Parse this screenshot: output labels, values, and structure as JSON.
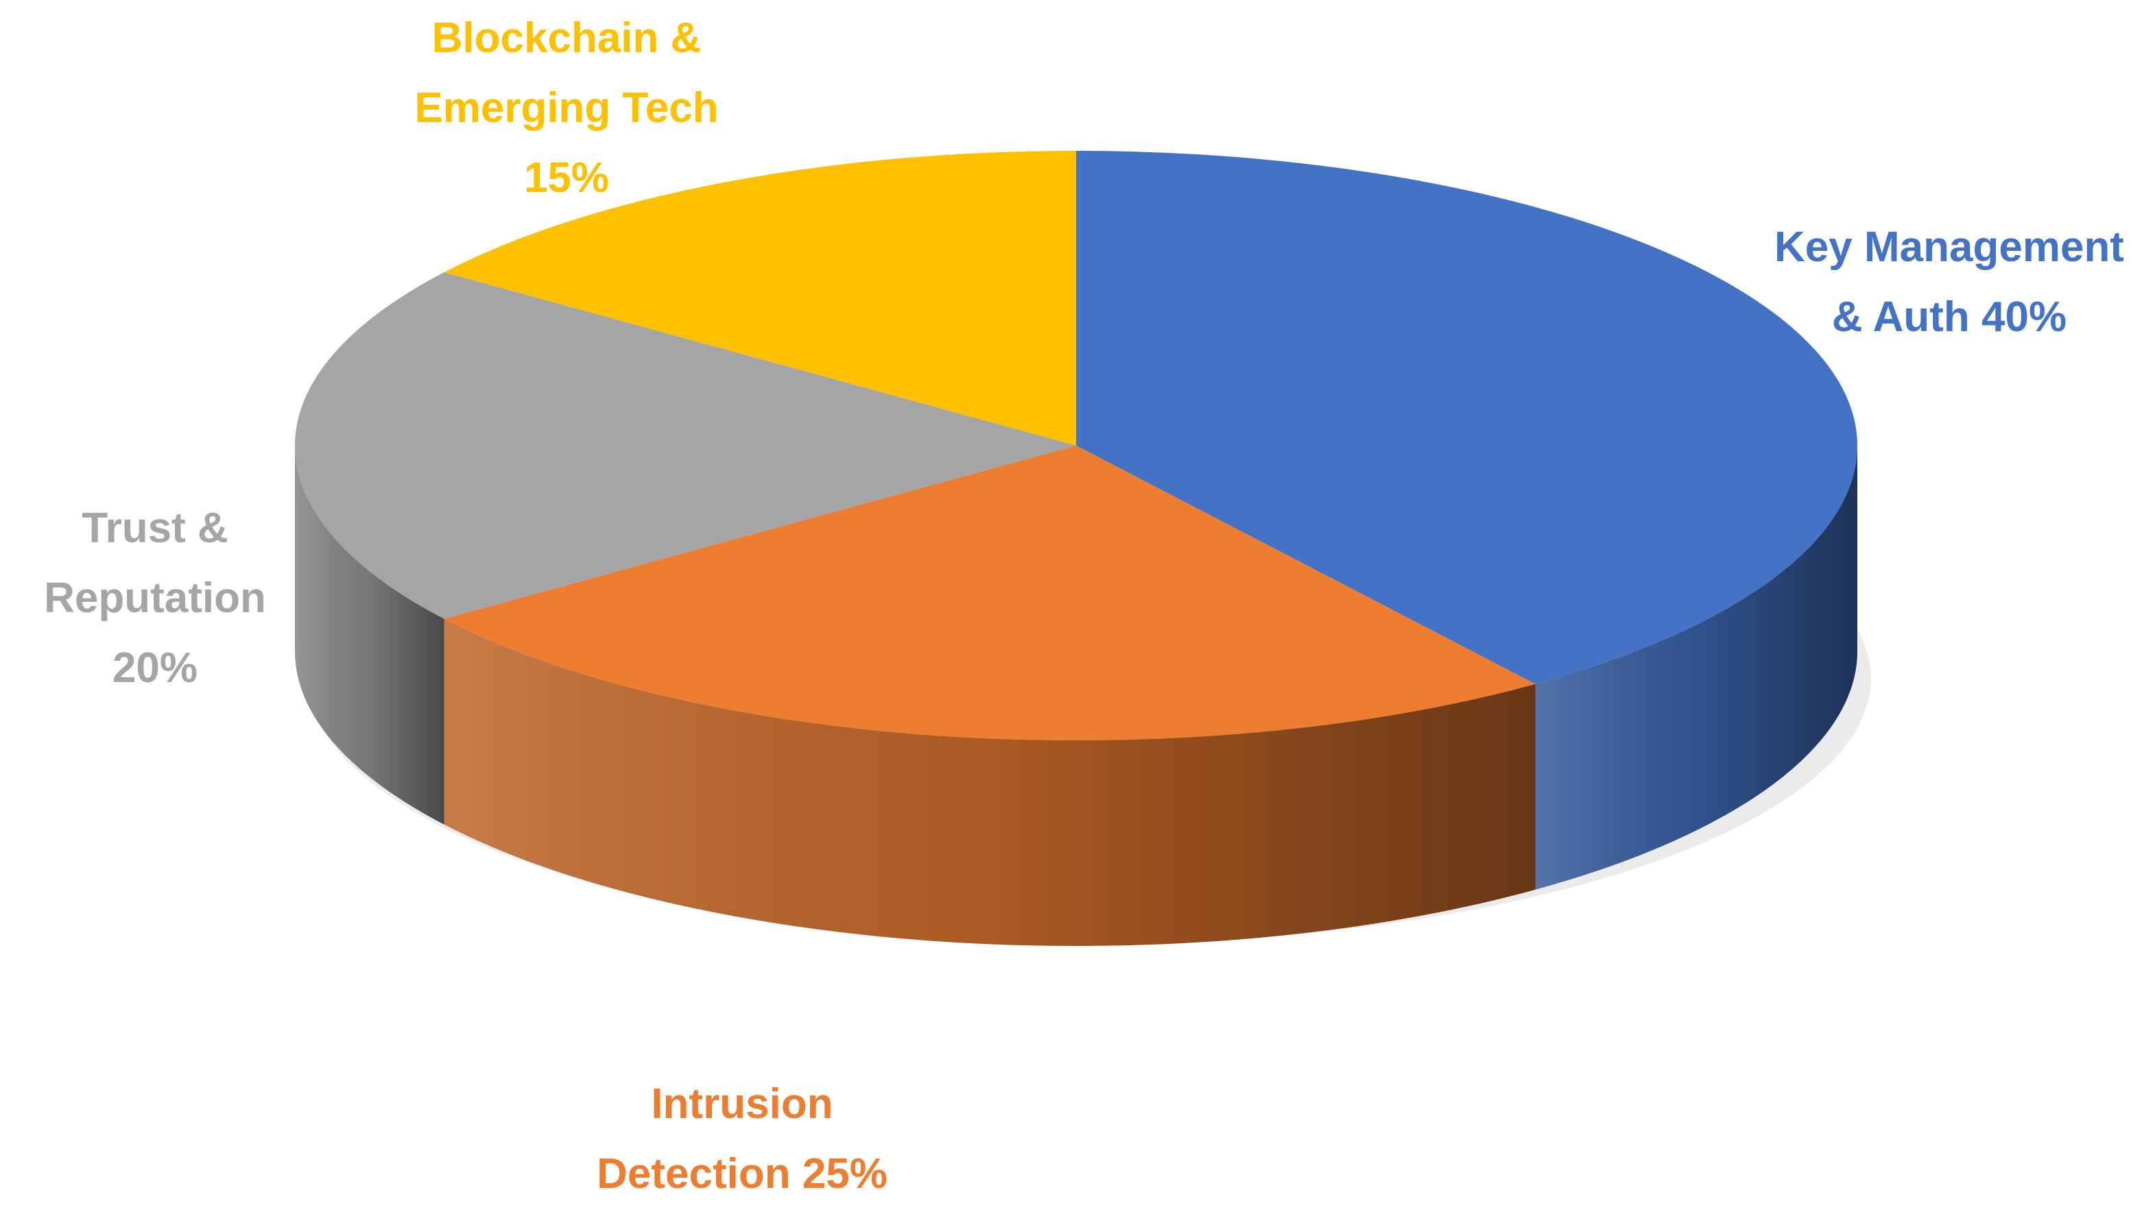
{
  "chart_data": {
    "type": "pie",
    "categories": [
      "Key Management & Auth",
      "Intrusion Detection",
      "Trust & Reputation",
      "Blockchain & Emerging Tech"
    ],
    "values": [
      40,
      25,
      20,
      15
    ],
    "value_labels": [
      "40%",
      "25%",
      "20%",
      "15%"
    ],
    "colors": [
      "#4472c4",
      "#ed7d31",
      "#a5a5a5",
      "#ffc000"
    ]
  }
}
